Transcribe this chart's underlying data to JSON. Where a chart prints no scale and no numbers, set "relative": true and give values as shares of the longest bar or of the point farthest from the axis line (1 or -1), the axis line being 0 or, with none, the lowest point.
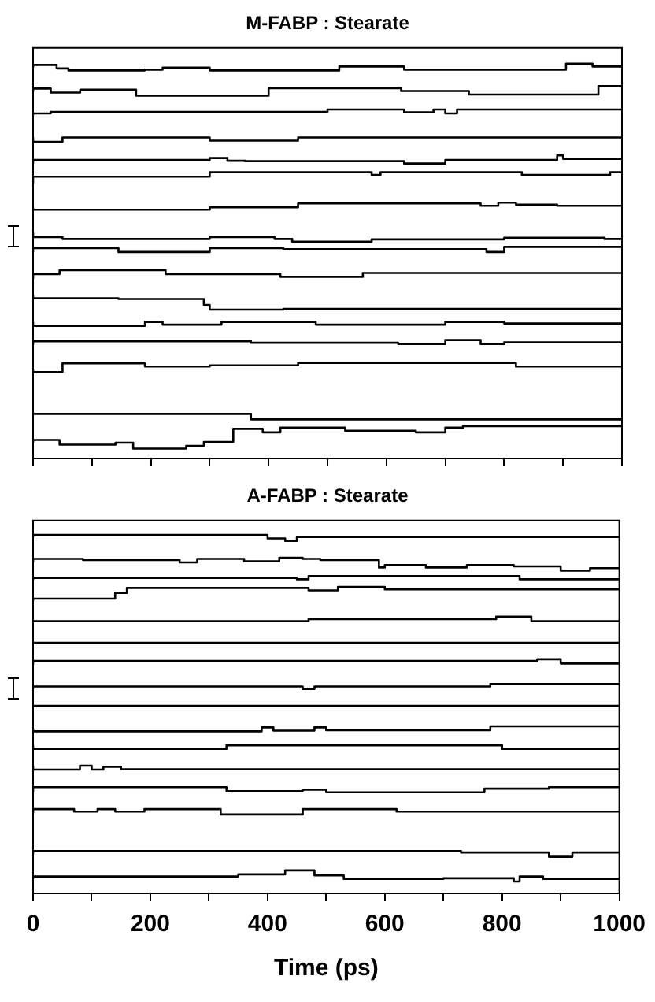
{
  "chart_data": [
    {
      "type": "step",
      "title": "M-FABP : Stearate",
      "relative": true,
      "xlim": [
        0,
        1000
      ],
      "xticks": [
        0,
        {
          "value": 100,
          "label": null
        },
        200,
        {
          "value": 300,
          "label": null
        },
        400,
        {
          "value": 500,
          "label": null
        },
        600,
        {
          "value": 700,
          "label": null
        },
        800,
        {
          "value": 900,
          "label": null
        },
        1000
      ],
      "tick_labels": false,
      "grid": false,
      "legend": false,
      "series": [
        {
          "color": "#000000",
          "x": [
            0,
            40,
            60,
            190,
            220,
            300,
            520,
            630,
            905,
            950,
            980,
            1000
          ],
          "values": [
            0.99,
            0.997,
            0.988,
            0.983,
            0.985,
            0.99,
            0.983,
            0.993,
            0.985,
            1.0,
            0.993,
            0.993
          ]
        },
        {
          "color": "#000000",
          "x": [
            0,
            30,
            80,
            175,
            400,
            625,
            740,
            960,
            990,
            1000
          ],
          "values": [
            0.929,
            0.937,
            0.927,
            0.934,
            0.919,
            0.938,
            0.931,
            0.922,
            0.943,
            0.943
          ]
        },
        {
          "color": "#000000",
          "x": [
            0,
            30,
            500,
            630,
            680,
            700,
            720,
            970,
            1000
          ],
          "values": [
            0.87,
            0.874,
            0.878,
            0.884,
            0.877,
            0.884,
            0.874,
            0.884,
            0.884
          ]
        },
        {
          "color": "#000000",
          "x": [
            0,
            50,
            300,
            450,
            470,
            1000
          ],
          "values": [
            0.813,
            0.802,
            0.813,
            0.805,
            0.813,
            0.813
          ]
        },
        {
          "color": "#000000",
          "x": [
            0,
            300,
            330,
            360,
            630,
            700,
            890,
            900,
            980,
            1000
          ],
          "values": [
            0.747,
            0.756,
            0.761,
            0.754,
            0.753,
            0.747,
            0.756,
            0.768,
            0.759,
            0.759
          ]
        },
        {
          "color": "#000000",
          "x": [
            0,
            300,
            575,
            590,
            830,
            980,
            1000
          ],
          "values": [
            0.696,
            0.714,
            0.725,
            0.718,
            0.725,
            0.718,
            0.725
          ]
        },
        {
          "color": "#000000",
          "x": [
            0,
            300,
            450,
            760,
            790,
            820,
            890,
            1000
          ],
          "values": [
            0.636,
            0.63,
            0.636,
            0.646,
            0.64,
            0.648,
            0.643,
            0.64
          ]
        },
        {
          "color": "#000000",
          "x": [
            0,
            50,
            300,
            410,
            440,
            575,
            800,
            970,
            1000
          ],
          "values": [
            0.573,
            0.561,
            0.556,
            0.561,
            0.556,
            0.549,
            0.555,
            0.559,
            0.556
          ]
        },
        {
          "color": "#000000",
          "x": [
            0,
            145,
            300,
            425,
            770,
            800,
            820,
            1000
          ],
          "values": [
            0.523,
            0.533,
            0.523,
            0.533,
            0.53,
            0.523,
            0.536,
            0.536
          ]
        },
        {
          "color": "#000000",
          "x": [
            0,
            45,
            225,
            420,
            560,
            1000
          ],
          "values": [
            0.455,
            0.467,
            0.477,
            0.467,
            0.46,
            0.47
          ]
        },
        {
          "color": "#000000",
          "x": [
            0,
            145,
            290,
            300,
            425,
            1000
          ],
          "values": [
            0.414,
            0.406,
            0.404,
            0.389,
            0.377,
            0.379
          ]
        },
        {
          "color": "#000000",
          "x": [
            0,
            190,
            220,
            320,
            480,
            700,
            800,
            1000
          ],
          "values": [
            0.346,
            0.336,
            0.346,
            0.339,
            0.346,
            0.339,
            0.346,
            0.342
          ]
        },
        {
          "color": "#000000",
          "x": [
            0,
            370,
            620,
            700,
            760,
            800,
            1000
          ],
          "values": [
            0.288,
            0.297,
            0.293,
            0.29,
            0.3,
            0.29,
            0.294
          ]
        },
        {
          "color": "#000000",
          "x": [
            0,
            50,
            140,
            190,
            300,
            450,
            820,
            1000
          ],
          "values": [
            0.226,
            0.219,
            0.241,
            0.241,
            0.233,
            0.236,
            0.242,
            0.233
          ]
        },
        {
          "color": "#000000",
          "x": [
            0,
            370,
            390,
            1000
          ],
          "values": [
            0.116,
            0.113,
            0.099,
            0.099
          ]
        },
        {
          "color": "#000000",
          "x": [
            0,
            45,
            140,
            170,
            260,
            290,
            340,
            360,
            390,
            420,
            530,
            650,
            700,
            730,
            1000
          ],
          "values": [
            0.04,
            0.047,
            0.035,
            0.04,
            0.025,
            0.032,
            0.042,
            0.075,
            0.075,
            0.066,
            0.078,
            0.07,
            0.066,
            0.078,
            0.082
          ]
        }
      ]
    },
    {
      "type": "step",
      "title": "A-FABP : Stearate",
      "xlabel": "Time (ps)",
      "relative": true,
      "xlim": [
        0,
        1000
      ],
      "xticks": [
        0,
        {
          "value": 100,
          "label": null
        },
        200,
        {
          "value": 300,
          "label": null
        },
        400,
        {
          "value": 500,
          "label": null
        },
        600,
        {
          "value": 700,
          "label": null
        },
        800,
        {
          "value": 900,
          "label": null
        },
        1000
      ],
      "tick_labels": "x",
      "grid": false,
      "legend": false,
      "series": [
        {
          "color": "#000000",
          "x": [
            0,
            400,
            430,
            450,
            460,
            1000
          ],
          "values": [
            0.994,
            1.0,
            0.99,
            0.983,
            0.994,
            0.994
          ]
        },
        {
          "color": "#000000",
          "x": [
            0,
            85,
            250,
            280,
            360,
            420,
            460,
            490,
            590,
            600,
            670,
            740,
            820,
            900,
            950,
            970,
            1000
          ],
          "values": [
            0.923,
            0.933,
            0.93,
            0.923,
            0.933,
            0.926,
            0.936,
            0.933,
            0.93,
            0.909,
            0.916,
            0.909,
            0.916,
            0.912,
            0.9,
            0.907,
            0.907
          ]
        },
        {
          "color": "#000000",
          "x": [
            0,
            450,
            470,
            830,
            845,
            1000
          ],
          "values": [
            0.873,
            0.88,
            0.876,
            0.885,
            0.876,
            0.876
          ]
        },
        {
          "color": "#000000",
          "x": [
            0,
            140,
            160,
            470,
            520,
            600,
            640,
            1000
          ],
          "values": [
            0.816,
            0.822,
            0.838,
            0.852,
            0.845,
            0.855,
            0.848,
            0.848
          ]
        },
        {
          "color": "#000000",
          "x": [
            0,
            470,
            790,
            850,
            880,
            1000
          ],
          "values": [
            0.756,
            0.759,
            0.765,
            0.772,
            0.759,
            0.759
          ]
        },
        {
          "color": "#000000",
          "x": [
            0,
            500,
            1000
          ],
          "values": [
            0.696,
            0.699,
            0.699
          ]
        },
        {
          "color": "#000000",
          "x": [
            0,
            860,
            900,
            910,
            1000
          ],
          "values": [
            0.638,
            0.648,
            0.653,
            0.641,
            0.641
          ]
        },
        {
          "color": "#000000",
          "x": [
            0,
            460,
            480,
            780,
            950,
            1000
          ],
          "values": [
            0.57,
            0.577,
            0.57,
            0.577,
            0.584,
            0.584
          ]
        },
        {
          "color": "#000000",
          "x": [
            0,
            500,
            1000
          ],
          "values": [
            0.52,
            0.523,
            0.523
          ]
        },
        {
          "color": "#000000",
          "x": [
            0,
            390,
            410,
            480,
            500,
            780,
            800,
            1000
          ],
          "values": [
            0.46,
            0.452,
            0.463,
            0.454,
            0.463,
            0.455,
            0.466,
            0.466
          ]
        },
        {
          "color": "#000000",
          "x": [
            0,
            330,
            800,
            950,
            1000
          ],
          "values": [
            0.413,
            0.403,
            0.413,
            0.403,
            0.403
          ]
        },
        {
          "color": "#000000",
          "x": [
            0,
            80,
            100,
            120,
            150,
            320,
            1000
          ],
          "values": [
            0.356,
            0.345,
            0.356,
            0.345,
            0.353,
            0.346,
            0.346
          ]
        },
        {
          "color": "#000000",
          "x": [
            0,
            330,
            460,
            500,
            770,
            880,
            1000
          ],
          "values": [
            0.282,
            0.296,
            0.285,
            0.289,
            0.282,
            0.292,
            0.296
          ]
        },
        {
          "color": "#000000",
          "x": [
            0,
            70,
            110,
            140,
            190,
            320,
            460,
            520,
            620,
            760,
            1000
          ],
          "values": [
            0.223,
            0.235,
            0.228,
            0.235,
            0.228,
            0.235,
            0.22,
            0.235,
            0.235,
            0.228,
            0.228
          ]
        },
        {
          "color": "#000000",
          "x": [
            0,
            730,
            880,
            920,
            950,
            1000
          ],
          "values": [
            0.11,
            0.118,
            0.114,
            0.102,
            0.114,
            0.114
          ]
        },
        {
          "color": "#000000",
          "x": [
            0,
            350,
            430,
            480,
            530,
            700,
            820,
            830,
            870,
            900,
            1000
          ],
          "values": [
            0.04,
            0.047,
            0.053,
            0.064,
            0.05,
            0.04,
            0.042,
            0.033,
            0.047,
            0.04,
            0.04
          ]
        }
      ]
    }
  ]
}
